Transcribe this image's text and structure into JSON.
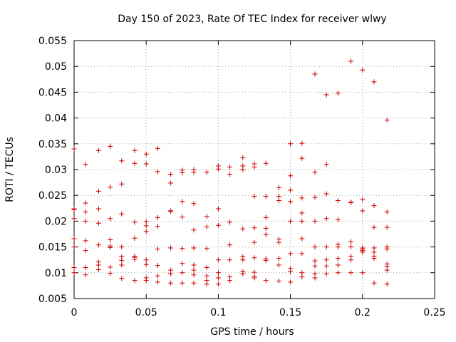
{
  "chart_data": {
    "type": "scatter",
    "title": "Day 150 of 2023, Rate Of TEC Index for receiver wlwy",
    "xlabel": "GPS time / hours",
    "ylabel": "ROTI / TECUs",
    "xlim": [
      0,
      0.25
    ],
    "ylim": [
      0.005,
      0.055
    ],
    "x_ticks": [
      0,
      0.05,
      0.1,
      0.15,
      0.2,
      0.25
    ],
    "x_tick_labels": [
      "0",
      "0.05",
      "0.1",
      "0.15",
      "0.2",
      "0.25"
    ],
    "y_ticks": [
      0.005,
      0.01,
      0.015,
      0.02,
      0.025,
      0.03,
      0.035,
      0.04,
      0.045,
      0.05,
      0.055
    ],
    "y_tick_labels": [
      "0.005",
      "0.01",
      "0.015",
      "0.02",
      "0.025",
      "0.03",
      "0.035",
      "0.04",
      "0.045",
      "0.05",
      "0.055"
    ],
    "grid": true,
    "marker": "+",
    "marker_color": "#cc0000",
    "series": [
      {
        "name": "ROTI",
        "points": [
          [
            0.0,
            0.034
          ],
          [
            0.0,
            0.0224
          ],
          [
            0.0,
            0.0222
          ],
          [
            0.0,
            0.0205
          ],
          [
            0.0,
            0.0166
          ],
          [
            0.0,
            0.015
          ],
          [
            0.0,
            0.011
          ],
          [
            0.0,
            0.01
          ],
          [
            0.008,
            0.031
          ],
          [
            0.008,
            0.0235
          ],
          [
            0.008,
            0.0218
          ],
          [
            0.008,
            0.02
          ],
          [
            0.008,
            0.0162
          ],
          [
            0.008,
            0.0143
          ],
          [
            0.008,
            0.011
          ],
          [
            0.008,
            0.0096
          ],
          [
            0.017,
            0.0337
          ],
          [
            0.017,
            0.0258
          ],
          [
            0.017,
            0.0224
          ],
          [
            0.017,
            0.0196
          ],
          [
            0.017,
            0.0154
          ],
          [
            0.017,
            0.0121
          ],
          [
            0.017,
            0.0115
          ],
          [
            0.017,
            0.0106
          ],
          [
            0.025,
            0.0345
          ],
          [
            0.025,
            0.0266
          ],
          [
            0.025,
            0.0205
          ],
          [
            0.025,
            0.0164
          ],
          [
            0.025,
            0.0152
          ],
          [
            0.025,
            0.0149
          ],
          [
            0.025,
            0.0111
          ],
          [
            0.025,
            0.0099
          ],
          [
            0.033,
            0.0317
          ],
          [
            0.033,
            0.0272
          ],
          [
            0.033,
            0.0214
          ],
          [
            0.033,
            0.015
          ],
          [
            0.033,
            0.0131
          ],
          [
            0.033,
            0.0124
          ],
          [
            0.033,
            0.0115
          ],
          [
            0.033,
            0.0089
          ],
          [
            0.042,
            0.0337
          ],
          [
            0.042,
            0.0312
          ],
          [
            0.042,
            0.0198
          ],
          [
            0.042,
            0.0167
          ],
          [
            0.042,
            0.0132
          ],
          [
            0.042,
            0.013
          ],
          [
            0.042,
            0.0126
          ],
          [
            0.042,
            0.0085
          ],
          [
            0.05,
            0.033
          ],
          [
            0.05,
            0.0311
          ],
          [
            0.05,
            0.0199
          ],
          [
            0.05,
            0.0191
          ],
          [
            0.05,
            0.018
          ],
          [
            0.05,
            0.0125
          ],
          [
            0.05,
            0.0116
          ],
          [
            0.05,
            0.009
          ],
          [
            0.05,
            0.0085
          ],
          [
            0.058,
            0.0341
          ],
          [
            0.058,
            0.0296
          ],
          [
            0.058,
            0.0207
          ],
          [
            0.058,
            0.019
          ],
          [
            0.058,
            0.0146
          ],
          [
            0.058,
            0.0114
          ],
          [
            0.058,
            0.0094
          ],
          [
            0.058,
            0.0082
          ],
          [
            0.067,
            0.0291
          ],
          [
            0.067,
            0.0274
          ],
          [
            0.067,
            0.022
          ],
          [
            0.067,
            0.0219
          ],
          [
            0.067,
            0.0148
          ],
          [
            0.067,
            0.0105
          ],
          [
            0.067,
            0.0098
          ],
          [
            0.067,
            0.008
          ],
          [
            0.075,
            0.0299
          ],
          [
            0.075,
            0.0294
          ],
          [
            0.075,
            0.0238
          ],
          [
            0.075,
            0.0208
          ],
          [
            0.075,
            0.0147
          ],
          [
            0.075,
            0.0118
          ],
          [
            0.075,
            0.01
          ],
          [
            0.075,
            0.008
          ],
          [
            0.083,
            0.03
          ],
          [
            0.083,
            0.0295
          ],
          [
            0.083,
            0.0234
          ],
          [
            0.083,
            0.0183
          ],
          [
            0.083,
            0.0148
          ],
          [
            0.083,
            0.0115
          ],
          [
            0.083,
            0.0105
          ],
          [
            0.083,
            0.0096
          ],
          [
            0.083,
            0.008
          ],
          [
            0.092,
            0.0295
          ],
          [
            0.092,
            0.0209
          ],
          [
            0.092,
            0.0189
          ],
          [
            0.092,
            0.0147
          ],
          [
            0.092,
            0.011
          ],
          [
            0.092,
            0.0094
          ],
          [
            0.092,
            0.0085
          ],
          [
            0.092,
            0.0078
          ],
          [
            0.1,
            0.0307
          ],
          [
            0.1,
            0.0301
          ],
          [
            0.1,
            0.0224
          ],
          [
            0.1,
            0.0192
          ],
          [
            0.1,
            0.0125
          ],
          [
            0.1,
            0.01
          ],
          [
            0.1,
            0.009
          ],
          [
            0.1,
            0.0078
          ],
          [
            0.108,
            0.0305
          ],
          [
            0.108,
            0.0291
          ],
          [
            0.108,
            0.0198
          ],
          [
            0.108,
            0.0154
          ],
          [
            0.108,
            0.0125
          ],
          [
            0.108,
            0.0092
          ],
          [
            0.108,
            0.0085
          ],
          [
            0.117,
            0.0323
          ],
          [
            0.117,
            0.0307
          ],
          [
            0.117,
            0.03
          ],
          [
            0.117,
            0.0185
          ],
          [
            0.117,
            0.0131
          ],
          [
            0.117,
            0.0125
          ],
          [
            0.117,
            0.0102
          ],
          [
            0.117,
            0.0098
          ],
          [
            0.125,
            0.0311
          ],
          [
            0.125,
            0.0305
          ],
          [
            0.125,
            0.0248
          ],
          [
            0.125,
            0.0187
          ],
          [
            0.125,
            0.0159
          ],
          [
            0.125,
            0.0129
          ],
          [
            0.125,
            0.0101
          ],
          [
            0.125,
            0.0093
          ],
          [
            0.125,
            0.009
          ],
          [
            0.133,
            0.0312
          ],
          [
            0.133,
            0.0248
          ],
          [
            0.133,
            0.0207
          ],
          [
            0.133,
            0.0186
          ],
          [
            0.133,
            0.0174
          ],
          [
            0.133,
            0.0127
          ],
          [
            0.133,
            0.0124
          ],
          [
            0.133,
            0.0085
          ],
          [
            0.142,
            0.0265
          ],
          [
            0.142,
            0.0248
          ],
          [
            0.142,
            0.024
          ],
          [
            0.142,
            0.0165
          ],
          [
            0.142,
            0.0159
          ],
          [
            0.142,
            0.0128
          ],
          [
            0.142,
            0.0115
          ],
          [
            0.142,
            0.0084
          ],
          [
            0.15,
            0.035
          ],
          [
            0.15,
            0.0288
          ],
          [
            0.15,
            0.026
          ],
          [
            0.15,
            0.0238
          ],
          [
            0.15,
            0.02
          ],
          [
            0.15,
            0.0137
          ],
          [
            0.15,
            0.0108
          ],
          [
            0.15,
            0.0102
          ],
          [
            0.15,
            0.0082
          ],
          [
            0.158,
            0.0351
          ],
          [
            0.158,
            0.0322
          ],
          [
            0.158,
            0.0245
          ],
          [
            0.158,
            0.0216
          ],
          [
            0.158,
            0.02
          ],
          [
            0.158,
            0.0166
          ],
          [
            0.158,
            0.0137
          ],
          [
            0.158,
            0.01
          ],
          [
            0.158,
            0.0092
          ],
          [
            0.167,
            0.0485
          ],
          [
            0.167,
            0.0295
          ],
          [
            0.167,
            0.0246
          ],
          [
            0.167,
            0.02
          ],
          [
            0.167,
            0.015
          ],
          [
            0.167,
            0.0123
          ],
          [
            0.167,
            0.0113
          ],
          [
            0.167,
            0.0098
          ],
          [
            0.167,
            0.009
          ],
          [
            0.175,
            0.0445
          ],
          [
            0.175,
            0.031
          ],
          [
            0.175,
            0.0253
          ],
          [
            0.175,
            0.0205
          ],
          [
            0.175,
            0.015
          ],
          [
            0.175,
            0.0125
          ],
          [
            0.175,
            0.0113
          ],
          [
            0.175,
            0.0098
          ],
          [
            0.183,
            0.0448
          ],
          [
            0.183,
            0.024
          ],
          [
            0.183,
            0.0203
          ],
          [
            0.183,
            0.0155
          ],
          [
            0.183,
            0.015
          ],
          [
            0.183,
            0.0128
          ],
          [
            0.183,
            0.0115
          ],
          [
            0.183,
            0.01
          ],
          [
            0.192,
            0.051
          ],
          [
            0.192,
            0.0237
          ],
          [
            0.192,
            0.0236
          ],
          [
            0.192,
            0.016
          ],
          [
            0.192,
            0.015
          ],
          [
            0.192,
            0.0132
          ],
          [
            0.192,
            0.0125
          ],
          [
            0.192,
            0.01
          ],
          [
            0.2,
            0.0493
          ],
          [
            0.2,
            0.0242
          ],
          [
            0.2,
            0.022
          ],
          [
            0.2,
            0.0148
          ],
          [
            0.2,
            0.0146
          ],
          [
            0.2,
            0.0143
          ],
          [
            0.2,
            0.014
          ],
          [
            0.2,
            0.01
          ],
          [
            0.208,
            0.047
          ],
          [
            0.208,
            0.023
          ],
          [
            0.208,
            0.0188
          ],
          [
            0.208,
            0.0148
          ],
          [
            0.208,
            0.014
          ],
          [
            0.208,
            0.0132
          ],
          [
            0.208,
            0.0128
          ],
          [
            0.208,
            0.008
          ],
          [
            0.217,
            0.0396
          ],
          [
            0.217,
            0.0218
          ],
          [
            0.217,
            0.0188
          ],
          [
            0.217,
            0.015
          ],
          [
            0.217,
            0.0146
          ],
          [
            0.217,
            0.0117
          ],
          [
            0.217,
            0.0112
          ],
          [
            0.217,
            0.0105
          ],
          [
            0.217,
            0.0078
          ]
        ]
      }
    ]
  }
}
